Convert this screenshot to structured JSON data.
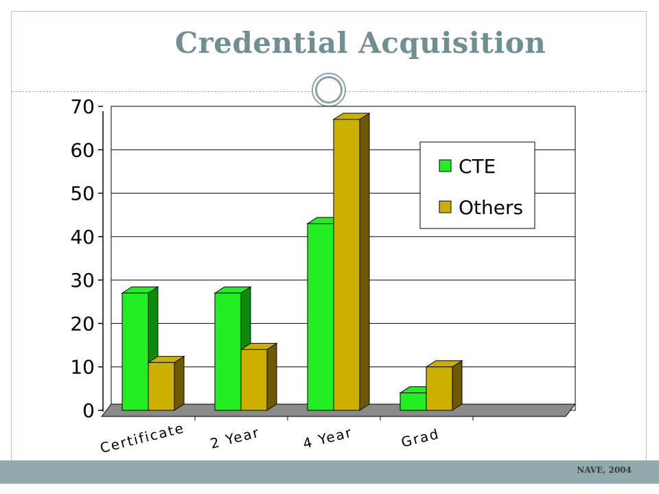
{
  "slide": {
    "title": "Credential Acquisition",
    "footer": "NAVE, 2004"
  },
  "colors": {
    "title": "#6f8f90",
    "footer_bar": "#8fabab",
    "cte": "#22ee22",
    "cte_dark": "#0b8a0b",
    "others": "#ccb000",
    "others_dark": "#6b5a00",
    "floor": "#8a8a8a"
  },
  "chart_data": {
    "type": "bar",
    "categories": [
      "Certificate",
      "2 Year",
      "4 Year",
      "Grad"
    ],
    "series": [
      {
        "name": "CTE",
        "values": [
          27,
          27,
          43,
          4
        ]
      },
      {
        "name": "Others",
        "values": [
          11,
          14,
          67,
          10
        ]
      }
    ],
    "yticks": [
      "0",
      "10",
      "20",
      "30",
      "40",
      "50",
      "60",
      "70"
    ],
    "ylim": [
      0,
      70
    ],
    "grid": true,
    "legend_position": "top-right",
    "style": "3d-clustered"
  }
}
